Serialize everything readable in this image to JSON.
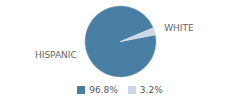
{
  "chart_data": {
    "type": "pie",
    "categories": [
      "HISPANIC",
      "WHITE"
    ],
    "values": [
      96.8,
      3.2
    ],
    "value_labels": [
      "96.8%",
      "3.2%"
    ],
    "colors": [
      "#4a7fa5",
      "#c8d8e8"
    ],
    "legend": "bottom"
  }
}
